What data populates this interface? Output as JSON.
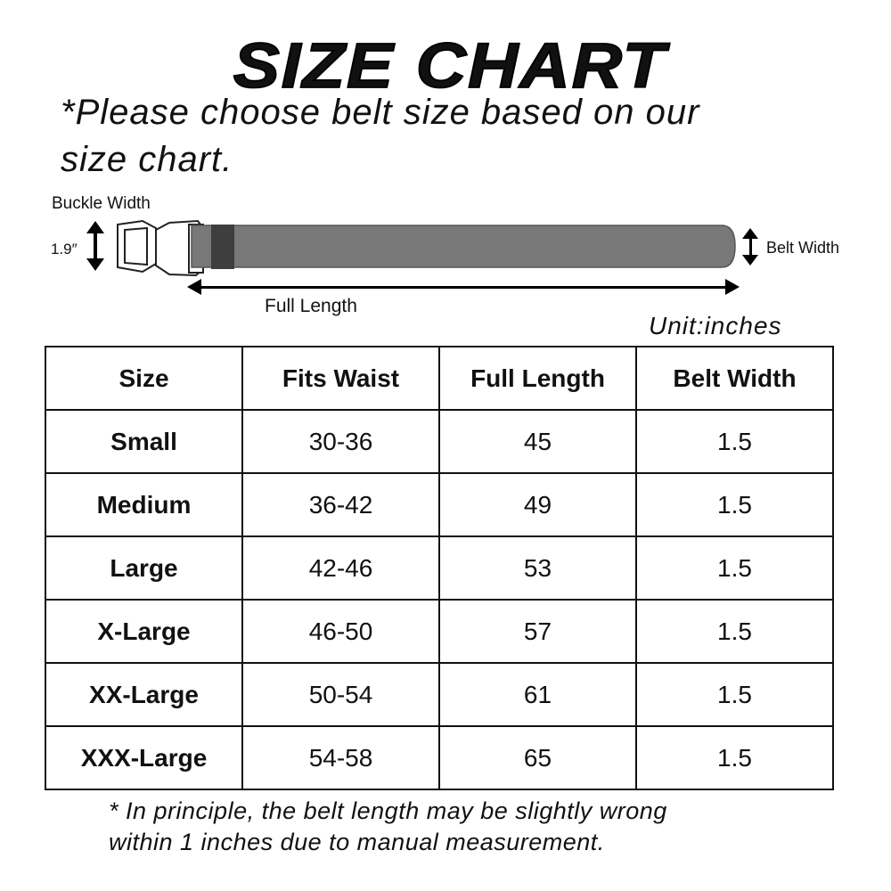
{
  "title": "SIZE CHART",
  "subtitle_line1": "*Please choose belt size based on our",
  "subtitle_line2": "size chart.",
  "diagram": {
    "buckle_width_label": "Buckle Width",
    "buckle_width_value": "1.9″",
    "belt_width_label": "Belt Width",
    "full_length_label": "Full Length",
    "belt_color": "#787878",
    "keeper_color": "#3e3e3e"
  },
  "unit": "Unit:inches",
  "table": {
    "headers": [
      "Size",
      "Fits Waist",
      "Full Length",
      "Belt Width"
    ],
    "rows": [
      [
        "Small",
        "30-36",
        "45",
        "1.5"
      ],
      [
        "Medium",
        "36-42",
        "49",
        "1.5"
      ],
      [
        "Large",
        "42-46",
        "53",
        "1.5"
      ],
      [
        "X-Large",
        "46-50",
        "57",
        "1.5"
      ],
      [
        "XX-Large",
        "50-54",
        "61",
        "1.5"
      ],
      [
        "XXX-Large",
        "54-58",
        "65",
        "1.5"
      ]
    ]
  },
  "note_line1": "* In principle, the belt length may be slightly wrong",
  "note_line2": "within 1 inches due to manual measurement."
}
